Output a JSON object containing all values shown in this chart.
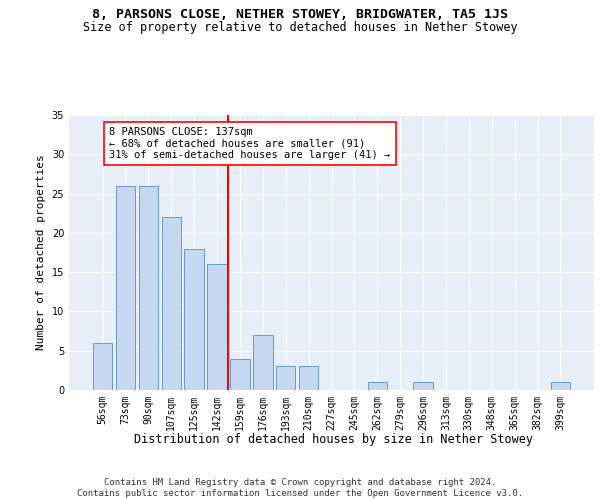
{
  "title": "8, PARSONS CLOSE, NETHER STOWEY, BRIDGWATER, TA5 1JS",
  "subtitle": "Size of property relative to detached houses in Nether Stowey",
  "xlabel": "Distribution of detached houses by size in Nether Stowey",
  "ylabel": "Number of detached properties",
  "categories": [
    "56sqm",
    "73sqm",
    "90sqm",
    "107sqm",
    "125sqm",
    "142sqm",
    "159sqm",
    "176sqm",
    "193sqm",
    "210sqm",
    "227sqm",
    "245sqm",
    "262sqm",
    "279sqm",
    "296sqm",
    "313sqm",
    "330sqm",
    "348sqm",
    "365sqm",
    "382sqm",
    "399sqm"
  ],
  "values": [
    6,
    26,
    26,
    22,
    18,
    16,
    4,
    7,
    3,
    3,
    0,
    0,
    1,
    0,
    1,
    0,
    0,
    0,
    0,
    0,
    1
  ],
  "bar_color": "#c5d8f0",
  "bar_edge_color": "#6699cc",
  "vline_x": 5.5,
  "vline_color": "red",
  "annotation_text": "8 PARSONS CLOSE: 137sqm\n← 68% of detached houses are smaller (91)\n31% of semi-detached houses are larger (41) →",
  "annotation_box_color": "white",
  "annotation_box_edge": "red",
  "ylim": [
    0,
    35
  ],
  "yticks": [
    0,
    5,
    10,
    15,
    20,
    25,
    30,
    35
  ],
  "bg_color": "#e8eef8",
  "footer": "Contains HM Land Registry data © Crown copyright and database right 2024.\nContains public sector information licensed under the Open Government Licence v3.0.",
  "title_fontsize": 9.5,
  "subtitle_fontsize": 8.5,
  "xlabel_fontsize": 8.5,
  "ylabel_fontsize": 8,
  "tick_fontsize": 7,
  "annotation_fontsize": 7.5,
  "footer_fontsize": 6.5
}
